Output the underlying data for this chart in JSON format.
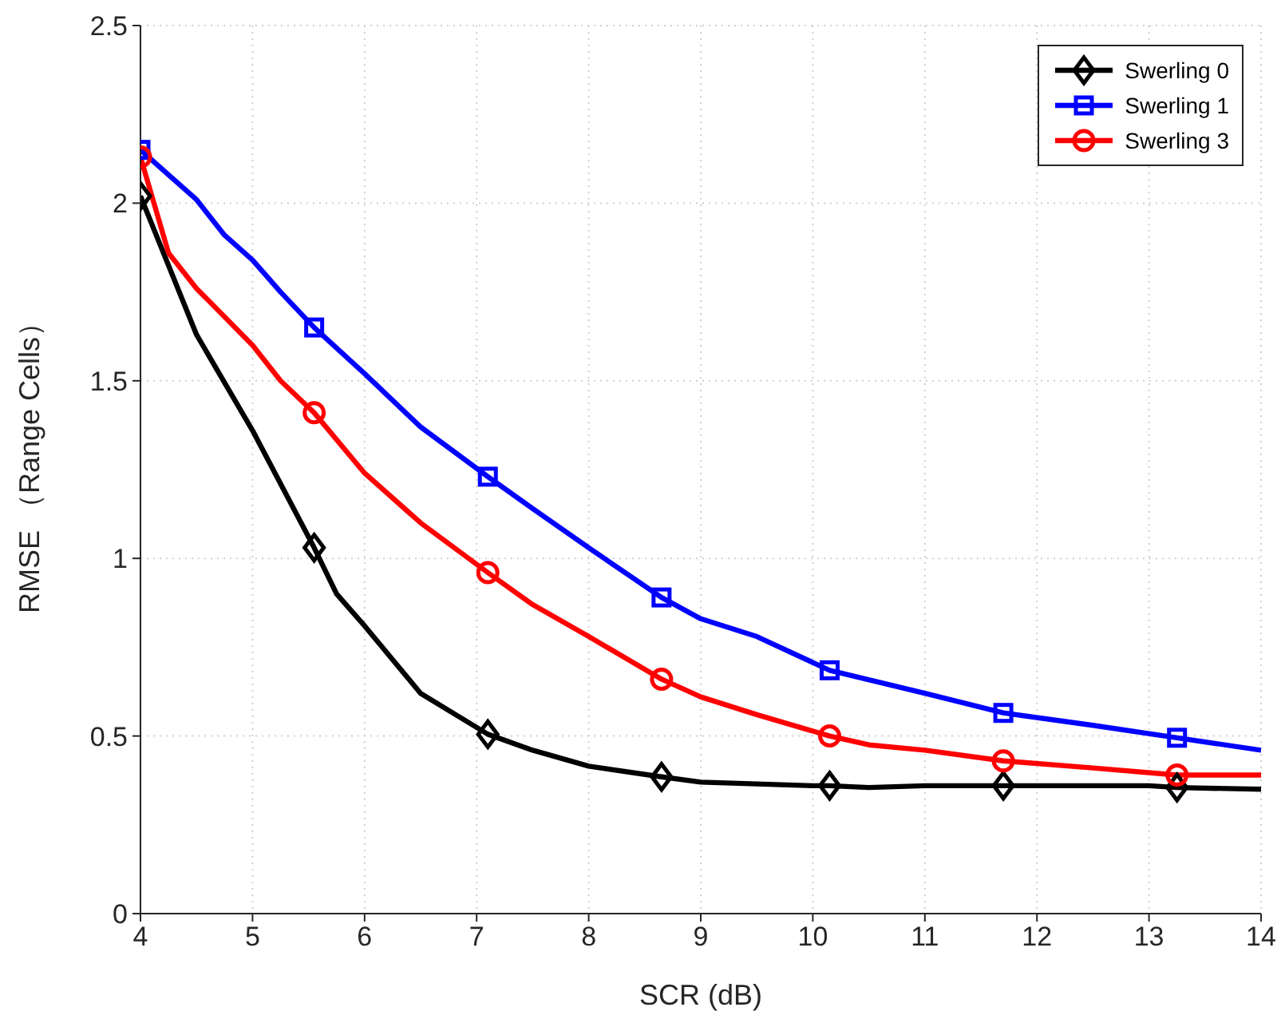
{
  "chart_data": {
    "type": "line",
    "xlabel": "SCR (dB)",
    "ylabel": "RMSE （Range Cells）",
    "xlim": [
      4,
      14
    ],
    "xticks": [
      4,
      5,
      6,
      7,
      8,
      9,
      10,
      11,
      12,
      13,
      14
    ],
    "ylim": [
      0,
      2.5
    ],
    "yticks": [
      0,
      0.5,
      1,
      1.5,
      2,
      2.5
    ],
    "grid": true,
    "legend": "top right",
    "line_style": "solid",
    "series": [
      {
        "color": "#000000",
        "x": [
          4,
          4.5,
          5,
          5.55,
          5.75,
          6,
          6.5,
          7.1,
          7.5,
          8,
          8.65,
          9,
          10,
          10.15,
          10.5,
          11,
          11.7,
          12,
          13,
          13.25,
          14
        ],
        "values": [
          2.02,
          1.63,
          1.36,
          1.03,
          0.9,
          0.81,
          0.62,
          0.505,
          0.46,
          0.415,
          0.385,
          0.37,
          0.36,
          0.36,
          0.355,
          0.36,
          0.36,
          0.36,
          0.36,
          0.355,
          0.35
        ]
      },
      {
        "color": "#0000ff",
        "x": [
          4,
          4.25,
          4.5,
          4.75,
          5,
          5.25,
          5.55,
          6,
          6.5,
          7.1,
          7.5,
          8,
          8.65,
          9,
          9.5,
          10.15,
          11,
          11.7,
          12.5,
          13.25,
          14
        ],
        "values": [
          2.15,
          2.08,
          2.01,
          1.91,
          1.84,
          1.75,
          1.65,
          1.52,
          1.37,
          1.23,
          1.14,
          1.03,
          0.89,
          0.83,
          0.78,
          0.685,
          0.62,
          0.565,
          0.53,
          0.495,
          0.46
        ]
      },
      {
        "color": "#ff0000",
        "x": [
          4,
          4.25,
          4.5,
          5,
          5.25,
          5.55,
          6,
          6.5,
          7.1,
          7.5,
          8,
          8.65,
          9,
          9.5,
          10.15,
          10.5,
          11,
          11.7,
          12.5,
          13.25,
          14
        ],
        "values": [
          2.13,
          1.86,
          1.76,
          1.6,
          1.5,
          1.41,
          1.24,
          1.1,
          0.96,
          0.87,
          0.78,
          0.66,
          0.61,
          0.56,
          0.5,
          0.475,
          0.46,
          0.43,
          0.41,
          0.39,
          0.39
        ]
      },
      {
        "type": "scatter",
        "name": "Swerling 0",
        "color": "#000000",
        "marker": "diamond",
        "x": [
          4,
          5.55,
          7.1,
          8.65,
          10.15,
          11.7,
          13.25
        ],
        "values": [
          2.02,
          1.03,
          0.505,
          0.385,
          0.36,
          0.36,
          0.355
        ]
      },
      {
        "type": "scatter",
        "name": "Swerling 1",
        "color": "#0000ff",
        "marker": "square",
        "x": [
          4,
          5.55,
          7.1,
          8.65,
          10.15,
          11.7,
          13.25
        ],
        "values": [
          2.15,
          1.65,
          1.23,
          0.89,
          0.685,
          0.565,
          0.495
        ]
      },
      {
        "type": "scatter",
        "name": "Swerling 3",
        "color": "#ff0000",
        "marker": "circle",
        "x": [
          4,
          5.55,
          7.1,
          8.65,
          10.15,
          11.7,
          13.25
        ],
        "values": [
          2.13,
          1.41,
          0.96,
          0.66,
          0.5,
          0.43,
          0.39
        ]
      }
    ]
  }
}
